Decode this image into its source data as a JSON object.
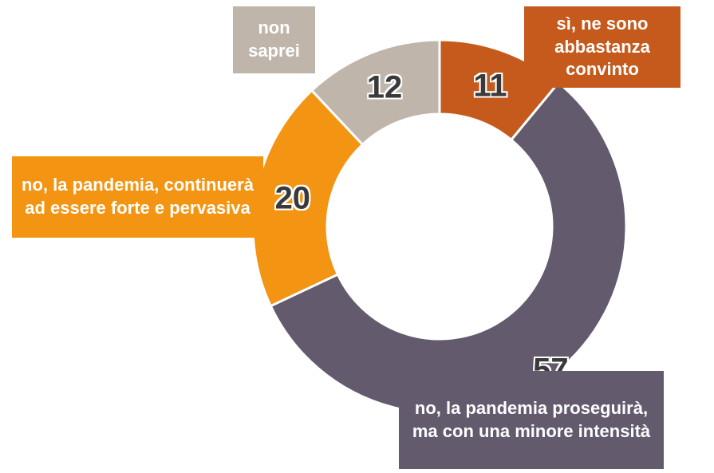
{
  "chart_data": {
    "type": "donut",
    "categories": [
      "sì, ne sono abbastanza convinto",
      "no, la pandemia proseguirà, ma con una minore intensità",
      "no, la pandemia, continuerà ad essere forte e pervasiva",
      "non saprei"
    ],
    "values": [
      11,
      57,
      20,
      12
    ],
    "colors": [
      "#c55a1c",
      "#635a6e",
      "#f39413",
      "#bfb5ab"
    ]
  }
}
